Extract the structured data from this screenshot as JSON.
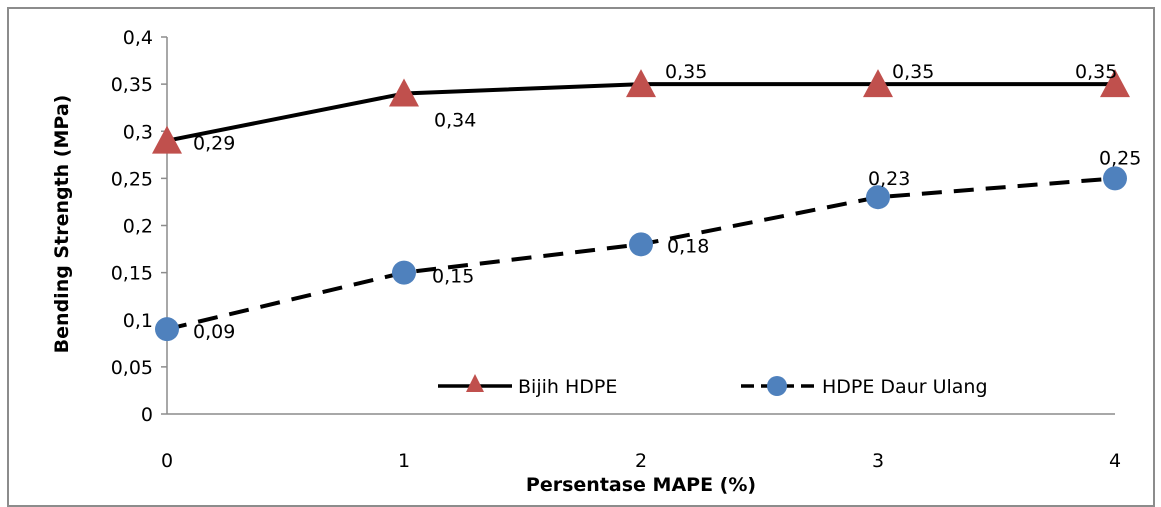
{
  "chart_data": {
    "type": "line",
    "title": "",
    "xlabel": "Persentase MAPE (%)",
    "ylabel": "Bending Strength (MPa)",
    "categories": [
      "0",
      "1",
      "2",
      "3",
      "4"
    ],
    "x": [
      0,
      1,
      2,
      3,
      4
    ],
    "ylim": [
      0,
      0.4
    ],
    "yticks": [
      "0",
      "0,05",
      "0,1",
      "0,15",
      "0,2",
      "0,25",
      "0,3",
      "0,35",
      "0,4"
    ],
    "grid": false,
    "legend_position": "bottom-inside",
    "series": [
      {
        "name": "Bijih HDPE",
        "values": [
          0.29,
          0.34,
          0.35,
          0.35,
          0.35
        ],
        "labels": [
          "0,29",
          "0,34",
          "0,35",
          "0,35",
          "0,35"
        ],
        "line_style": "solid",
        "line_color": "#000000",
        "marker": "triangle",
        "marker_color": "#c0504d"
      },
      {
        "name": "HDPE Daur Ulang",
        "values": [
          0.09,
          0.15,
          0.18,
          0.23,
          0.25
        ],
        "labels": [
          "0,09",
          "0,15",
          "0,18",
          "0,23",
          "0,25"
        ],
        "line_style": "dashed",
        "line_color": "#000000",
        "marker": "circle",
        "marker_color": "#4f81bd"
      }
    ]
  }
}
